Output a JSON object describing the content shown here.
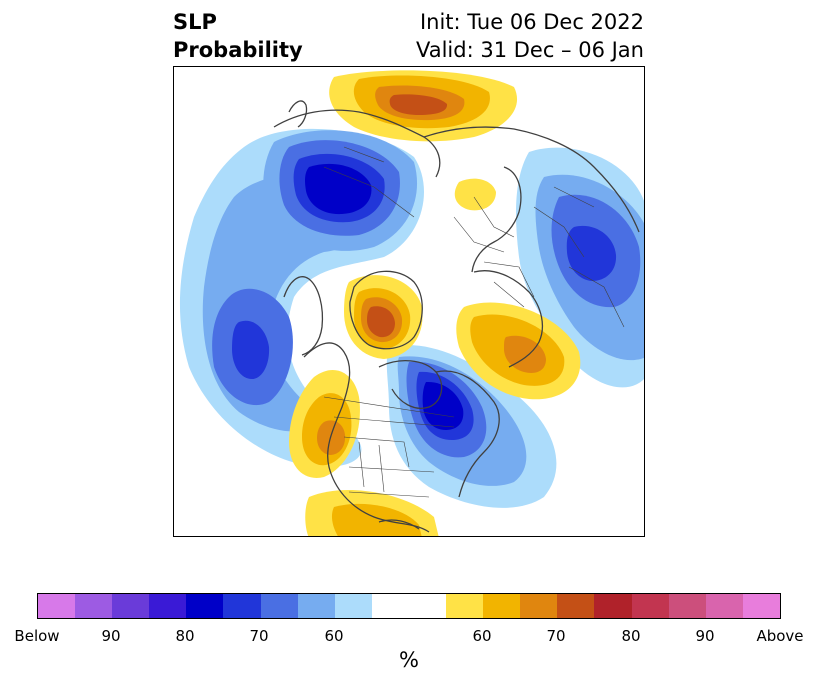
{
  "title": {
    "left_line1": "SLP",
    "left_line2": "Probability",
    "right_line1": "Init: Tue 06 Dec 2022",
    "right_line2": "Valid: 31 Dec – 06 Jan"
  },
  "colorbar": {
    "unit": "%",
    "colors": [
      "#d779e9",
      "#9d5be3",
      "#6a3bd9",
      "#3a1ad6",
      "#0000c8",
      "#2136d9",
      "#4a6fe3",
      "#76acf0",
      "#acdcfb",
      "#ffffff",
      "#ffffff",
      "#ffe246",
      "#f2b400",
      "#e0860f",
      "#c45016",
      "#b0222a",
      "#c23550",
      "#cc4f7c",
      "#d964ad",
      "#e87ddc"
    ],
    "tick_labels": [
      "Below",
      "90",
      "80",
      "70",
      "60",
      "60",
      "70",
      "80",
      "90",
      "Above"
    ]
  },
  "map": {
    "projection": "north-polar-stereographic",
    "below_colors": {
      "p60": "#acdcfb",
      "p65": "#76acf0",
      "p70": "#4a6fe3",
      "p75": "#2136d9",
      "p80": "#0000c8",
      "p85": "#3a1ad6"
    },
    "above_colors": {
      "p60": "#ffe246",
      "p65": "#f2b400",
      "p70": "#e0860f",
      "p75": "#c45016"
    },
    "coastline_color": "#404040"
  }
}
